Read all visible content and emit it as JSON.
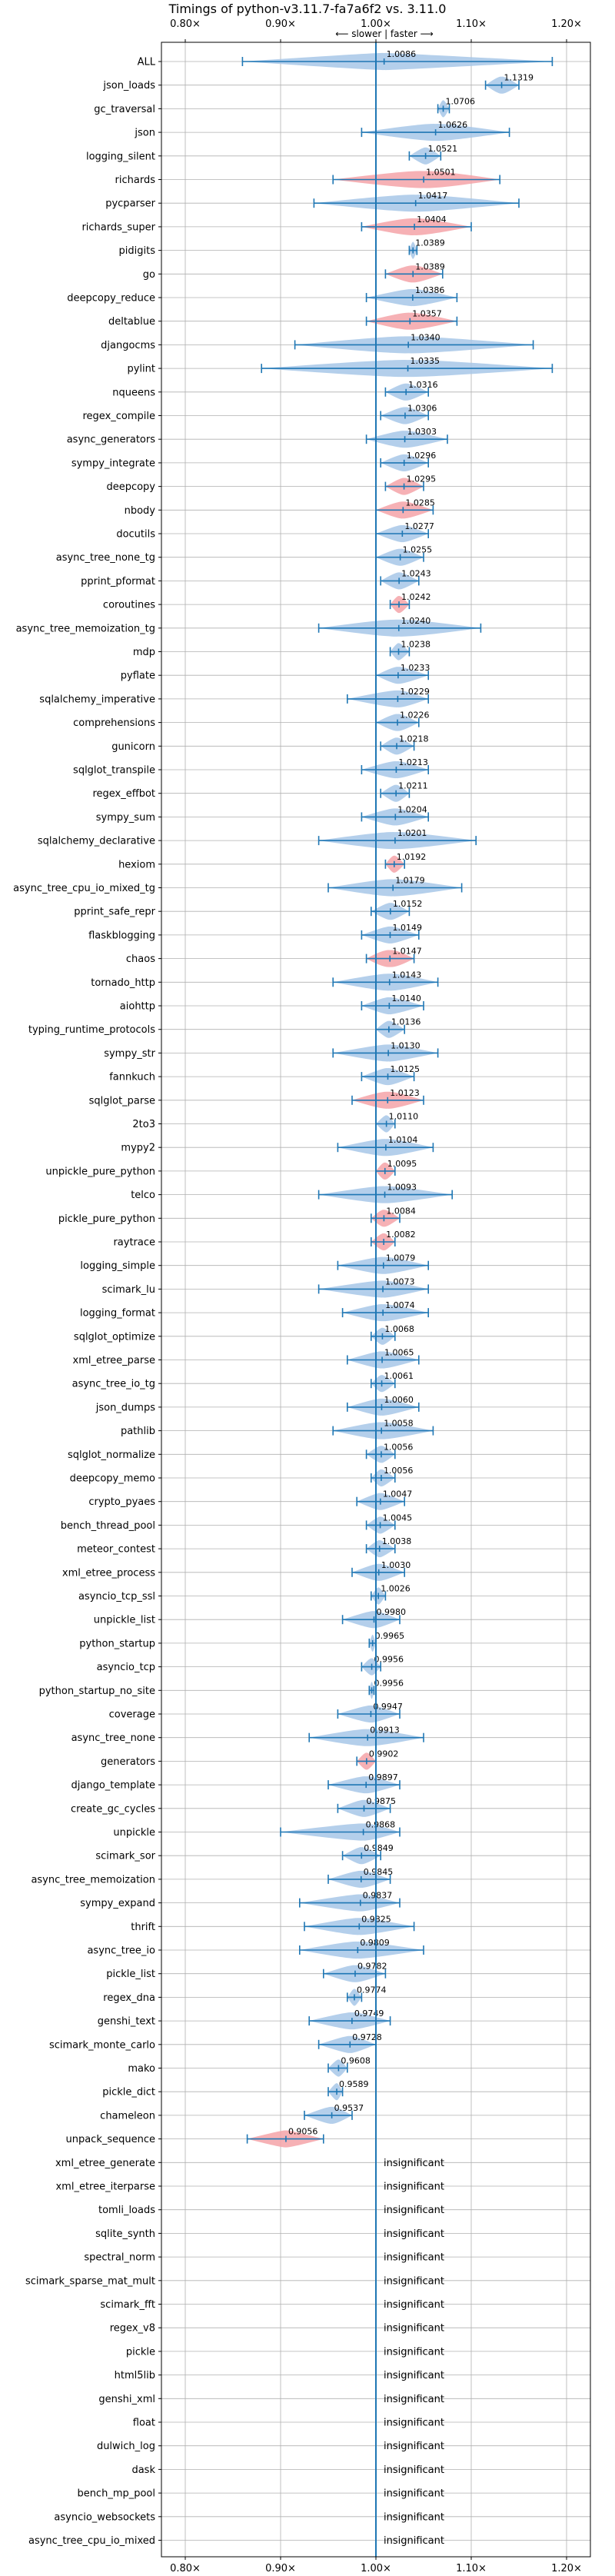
{
  "chart_data": {
    "type": "violin",
    "title": "Timings of python-v3.11.7-fa7a6f2 vs. 3.11.0",
    "direction_label": "⟵ slower | faster ⟶",
    "xlim": [
      0.775,
      1.225
    ],
    "xticks": [
      0.8,
      0.9,
      1.0,
      1.1,
      1.2
    ],
    "xtick_labels": [
      "0.80×",
      "0.90×",
      "1.00×",
      "1.10×",
      "1.20×"
    ],
    "reference_line": 1.0,
    "grid": true,
    "colors": {
      "faster": "#a7c7e7",
      "slower": "#f4a3a8",
      "errorbar": "#1f77b4",
      "reference": "#1f77b4",
      "grid": "#b0b0b0"
    },
    "insignificant_label": "insignificant",
    "benchmarks": [
      {
        "name": "ALL",
        "value": 1.0086,
        "min": 0.86,
        "max": 1.185,
        "width": 0.01,
        "slower": false
      },
      {
        "name": "json_loads",
        "value": 1.1319,
        "min": 1.115,
        "max": 1.15,
        "width": 0.018,
        "slower": false
      },
      {
        "name": "gc_traversal",
        "value": 1.0706,
        "min": 1.065,
        "max": 1.077,
        "width": 0.006,
        "slower": false
      },
      {
        "name": "json",
        "value": 1.0626,
        "min": 0.985,
        "max": 1.14,
        "width": 0.06,
        "slower": false
      },
      {
        "name": "logging_silent",
        "value": 1.0521,
        "min": 1.035,
        "max": 1.068,
        "width": 0.012,
        "slower": false
      },
      {
        "name": "richards",
        "value": 1.0501,
        "min": 0.955,
        "max": 1.13,
        "width": 0.08,
        "slower": true
      },
      {
        "name": "pycparser",
        "value": 1.0417,
        "min": 0.935,
        "max": 1.15,
        "width": 0.07,
        "slower": false
      },
      {
        "name": "richards_super",
        "value": 1.0404,
        "min": 0.985,
        "max": 1.1,
        "width": 0.05,
        "slower": true
      },
      {
        "name": "pidigits",
        "value": 1.0389,
        "min": 1.035,
        "max": 1.043,
        "width": 0.004,
        "slower": false
      },
      {
        "name": "go",
        "value": 1.0389,
        "min": 1.01,
        "max": 1.07,
        "width": 0.03,
        "slower": true
      },
      {
        "name": "deepcopy_reduce",
        "value": 1.0386,
        "min": 0.99,
        "max": 1.085,
        "width": 0.03,
        "slower": false
      },
      {
        "name": "deltablue",
        "value": 1.0357,
        "min": 0.99,
        "max": 1.085,
        "width": 0.04,
        "slower": true
      },
      {
        "name": "djangocms",
        "value": 1.034,
        "min": 0.915,
        "max": 1.165,
        "width": 0.09,
        "slower": false
      },
      {
        "name": "pylint",
        "value": 1.0335,
        "min": 0.88,
        "max": 1.185,
        "width": 0.1,
        "slower": false
      },
      {
        "name": "nqueens",
        "value": 1.0316,
        "min": 1.01,
        "max": 1.055,
        "width": 0.02,
        "slower": false
      },
      {
        "name": "regex_compile",
        "value": 1.0306,
        "min": 1.005,
        "max": 1.055,
        "width": 0.02,
        "slower": false
      },
      {
        "name": "async_generators",
        "value": 1.0303,
        "min": 0.99,
        "max": 1.075,
        "width": 0.03,
        "slower": false
      },
      {
        "name": "sympy_integrate",
        "value": 1.0296,
        "min": 1.005,
        "max": 1.055,
        "width": 0.02,
        "slower": false
      },
      {
        "name": "deepcopy",
        "value": 1.0295,
        "min": 1.01,
        "max": 1.05,
        "width": 0.015,
        "slower": true
      },
      {
        "name": "nbody",
        "value": 1.0285,
        "min": 1.0,
        "max": 1.06,
        "width": 0.025,
        "slower": true
      },
      {
        "name": "docutils",
        "value": 1.0277,
        "min": 1.0,
        "max": 1.055,
        "width": 0.02,
        "slower": false
      },
      {
        "name": "async_tree_none_tg",
        "value": 1.0255,
        "min": 1.0,
        "max": 1.05,
        "width": 0.02,
        "slower": false
      },
      {
        "name": "pprint_pformat",
        "value": 1.0243,
        "min": 1.005,
        "max": 1.045,
        "width": 0.015,
        "slower": false
      },
      {
        "name": "coroutines",
        "value": 1.0242,
        "min": 1.015,
        "max": 1.035,
        "width": 0.01,
        "slower": true
      },
      {
        "name": "async_tree_memoization_tg",
        "value": 1.024,
        "min": 0.94,
        "max": 1.11,
        "width": 0.07,
        "slower": false
      },
      {
        "name": "mdp",
        "value": 1.0238,
        "min": 1.015,
        "max": 1.035,
        "width": 0.008,
        "slower": false
      },
      {
        "name": "pyflate",
        "value": 1.0233,
        "min": 1.0,
        "max": 1.055,
        "width": 0.02,
        "slower": false
      },
      {
        "name": "sqlalchemy_imperative",
        "value": 1.0229,
        "min": 0.97,
        "max": 1.055,
        "width": 0.03,
        "slower": false
      },
      {
        "name": "comprehensions",
        "value": 1.0226,
        "min": 1.0,
        "max": 1.045,
        "width": 0.02,
        "slower": false
      },
      {
        "name": "gunicorn",
        "value": 1.0218,
        "min": 1.005,
        "max": 1.04,
        "width": 0.015,
        "slower": false
      },
      {
        "name": "sqlglot_transpile",
        "value": 1.0213,
        "min": 0.985,
        "max": 1.055,
        "width": 0.025,
        "slower": false
      },
      {
        "name": "regex_effbot",
        "value": 1.0211,
        "min": 1.005,
        "max": 1.035,
        "width": 0.012,
        "slower": false
      },
      {
        "name": "sympy_sum",
        "value": 1.0204,
        "min": 0.985,
        "max": 1.055,
        "width": 0.025,
        "slower": false
      },
      {
        "name": "sqlalchemy_declarative",
        "value": 1.0201,
        "min": 0.94,
        "max": 1.105,
        "width": 0.06,
        "slower": false
      },
      {
        "name": "hexiom",
        "value": 1.0192,
        "min": 1.01,
        "max": 1.03,
        "width": 0.01,
        "slower": true
      },
      {
        "name": "async_tree_cpu_io_mixed_tg",
        "value": 1.0179,
        "min": 0.95,
        "max": 1.09,
        "width": 0.05,
        "slower": false
      },
      {
        "name": "pprint_safe_repr",
        "value": 1.0152,
        "min": 0.995,
        "max": 1.035,
        "width": 0.015,
        "slower": false
      },
      {
        "name": "flaskblogging",
        "value": 1.0149,
        "min": 0.985,
        "max": 1.045,
        "width": 0.02,
        "slower": false
      },
      {
        "name": "chaos",
        "value": 1.0147,
        "min": 0.99,
        "max": 1.04,
        "width": 0.035,
        "slower": true
      },
      {
        "name": "tornado_http",
        "value": 1.0143,
        "min": 0.955,
        "max": 1.065,
        "width": 0.04,
        "slower": false
      },
      {
        "name": "aiohttp",
        "value": 1.014,
        "min": 0.985,
        "max": 1.05,
        "width": 0.02,
        "slower": false
      },
      {
        "name": "typing_runtime_protocols",
        "value": 1.0136,
        "min": 1.0,
        "max": 1.03,
        "width": 0.012,
        "slower": false
      },
      {
        "name": "sympy_str",
        "value": 1.013,
        "min": 0.955,
        "max": 1.065,
        "width": 0.03,
        "slower": false
      },
      {
        "name": "fannkuch",
        "value": 1.0125,
        "min": 0.985,
        "max": 1.04,
        "width": 0.02,
        "slower": false
      },
      {
        "name": "sqlglot_parse",
        "value": 1.0123,
        "min": 0.975,
        "max": 1.05,
        "width": 0.035,
        "slower": true
      },
      {
        "name": "2to3",
        "value": 1.011,
        "min": 1.0,
        "max": 1.02,
        "width": 0.008,
        "slower": false
      },
      {
        "name": "mypy2",
        "value": 1.0104,
        "min": 0.96,
        "max": 1.06,
        "width": 0.035,
        "slower": false
      },
      {
        "name": "unpickle_pure_python",
        "value": 1.0095,
        "min": 1.0,
        "max": 1.02,
        "width": 0.012,
        "slower": true
      },
      {
        "name": "telco",
        "value": 1.0093,
        "min": 0.94,
        "max": 1.08,
        "width": 0.04,
        "slower": false
      },
      {
        "name": "pickle_pure_python",
        "value": 1.0084,
        "min": 0.995,
        "max": 1.025,
        "width": 0.015,
        "slower": true
      },
      {
        "name": "raytrace",
        "value": 1.0082,
        "min": 0.995,
        "max": 1.02,
        "width": 0.012,
        "slower": true
      },
      {
        "name": "logging_simple",
        "value": 1.0079,
        "min": 0.96,
        "max": 1.055,
        "width": 0.03,
        "slower": false
      },
      {
        "name": "scimark_lu",
        "value": 1.0073,
        "min": 0.94,
        "max": 1.055,
        "width": 0.03,
        "slower": false
      },
      {
        "name": "logging_format",
        "value": 1.0074,
        "min": 0.965,
        "max": 1.055,
        "width": 0.03,
        "slower": false
      },
      {
        "name": "sqlglot_optimize",
        "value": 1.0068,
        "min": 0.995,
        "max": 1.02,
        "width": 0.01,
        "slower": false
      },
      {
        "name": "xml_etree_parse",
        "value": 1.0065,
        "min": 0.97,
        "max": 1.045,
        "width": 0.025,
        "slower": false
      },
      {
        "name": "async_tree_io_tg",
        "value": 1.0061,
        "min": 0.995,
        "max": 1.02,
        "width": 0.01,
        "slower": false
      },
      {
        "name": "json_dumps",
        "value": 1.006,
        "min": 0.97,
        "max": 1.045,
        "width": 0.025,
        "slower": false
      },
      {
        "name": "pathlib",
        "value": 1.0058,
        "min": 0.955,
        "max": 1.06,
        "width": 0.035,
        "slower": false
      },
      {
        "name": "sqlglot_normalize",
        "value": 1.0056,
        "min": 0.99,
        "max": 1.02,
        "width": 0.012,
        "slower": false
      },
      {
        "name": "deepcopy_memo",
        "value": 1.0056,
        "min": 0.995,
        "max": 1.02,
        "width": 0.01,
        "slower": false
      },
      {
        "name": "crypto_pyaes",
        "value": 1.0047,
        "min": 0.98,
        "max": 1.03,
        "width": 0.015,
        "slower": false
      },
      {
        "name": "bench_thread_pool",
        "value": 1.0045,
        "min": 0.99,
        "max": 1.02,
        "width": 0.01,
        "slower": false
      },
      {
        "name": "meteor_contest",
        "value": 1.0038,
        "min": 0.99,
        "max": 1.02,
        "width": 0.01,
        "slower": false
      },
      {
        "name": "xml_etree_process",
        "value": 1.003,
        "min": 0.975,
        "max": 1.03,
        "width": 0.02,
        "slower": false
      },
      {
        "name": "asyncio_tcp_ssl",
        "value": 1.0026,
        "min": 0.995,
        "max": 1.01,
        "width": 0.006,
        "slower": false
      },
      {
        "name": "unpickle_list",
        "value": 0.998,
        "min": 0.965,
        "max": 1.025,
        "width": 0.02,
        "slower": false
      },
      {
        "name": "python_startup",
        "value": 0.9965,
        "min": 0.993,
        "max": 1.0,
        "width": 0.003,
        "slower": false
      },
      {
        "name": "asyncio_tcp",
        "value": 0.9956,
        "min": 0.985,
        "max": 1.005,
        "width": 0.01,
        "slower": false
      },
      {
        "name": "python_startup_no_site",
        "value": 0.9956,
        "min": 0.993,
        "max": 0.998,
        "width": 0.003,
        "slower": false
      },
      {
        "name": "coverage",
        "value": 0.9947,
        "min": 0.96,
        "max": 1.025,
        "width": 0.02,
        "slower": false
      },
      {
        "name": "async_tree_none",
        "value": 0.9913,
        "min": 0.93,
        "max": 1.05,
        "width": 0.04,
        "slower": false
      },
      {
        "name": "generators",
        "value": 0.9902,
        "min": 0.98,
        "max": 1.0,
        "width": 0.01,
        "slower": true
      },
      {
        "name": "django_template",
        "value": 0.9897,
        "min": 0.95,
        "max": 1.025,
        "width": 0.025,
        "slower": false
      },
      {
        "name": "create_gc_cycles",
        "value": 0.9875,
        "min": 0.96,
        "max": 1.015,
        "width": 0.02,
        "slower": false
      },
      {
        "name": "unpickle",
        "value": 0.9868,
        "min": 0.9,
        "max": 1.025,
        "width": 0.04,
        "slower": false
      },
      {
        "name": "scimark_sor",
        "value": 0.9849,
        "min": 0.965,
        "max": 1.005,
        "width": 0.015,
        "slower": false
      },
      {
        "name": "async_tree_memoization",
        "value": 0.9845,
        "min": 0.95,
        "max": 1.015,
        "width": 0.025,
        "slower": false
      },
      {
        "name": "sympy_expand",
        "value": 0.9837,
        "min": 0.92,
        "max": 1.025,
        "width": 0.025,
        "slower": false
      },
      {
        "name": "thrift",
        "value": 0.9825,
        "min": 0.925,
        "max": 1.04,
        "width": 0.035,
        "slower": false
      },
      {
        "name": "async_tree_io",
        "value": 0.9809,
        "min": 0.92,
        "max": 1.05,
        "width": 0.04,
        "slower": false
      },
      {
        "name": "pickle_list",
        "value": 0.9782,
        "min": 0.945,
        "max": 1.01,
        "width": 0.025,
        "slower": false
      },
      {
        "name": "regex_dna",
        "value": 0.9774,
        "min": 0.97,
        "max": 0.985,
        "width": 0.006,
        "slower": false
      },
      {
        "name": "genshi_text",
        "value": 0.9749,
        "min": 0.93,
        "max": 1.015,
        "width": 0.025,
        "slower": false
      },
      {
        "name": "scimark_monte_carlo",
        "value": 0.9728,
        "min": 0.94,
        "max": 1.0,
        "width": 0.02,
        "slower": false
      },
      {
        "name": "mako",
        "value": 0.9608,
        "min": 0.95,
        "max": 0.97,
        "width": 0.008,
        "slower": false
      },
      {
        "name": "pickle_dict",
        "value": 0.9589,
        "min": 0.95,
        "max": 0.965,
        "width": 0.006,
        "slower": false
      },
      {
        "name": "chameleon",
        "value": 0.9537,
        "min": 0.925,
        "max": 0.975,
        "width": 0.02,
        "slower": false
      },
      {
        "name": "unpack_sequence",
        "value": 0.9056,
        "min": 0.865,
        "max": 0.945,
        "width": 0.012,
        "slower": true
      },
      {
        "name": "xml_etree_generate",
        "insignificant": true
      },
      {
        "name": "xml_etree_iterparse",
        "insignificant": true
      },
      {
        "name": "tomli_loads",
        "insignificant": true
      },
      {
        "name": "sqlite_synth",
        "insignificant": true
      },
      {
        "name": "spectral_norm",
        "insignificant": true
      },
      {
        "name": "scimark_sparse_mat_mult",
        "insignificant": true
      },
      {
        "name": "scimark_fft",
        "insignificant": true
      },
      {
        "name": "regex_v8",
        "insignificant": true
      },
      {
        "name": "pickle",
        "insignificant": true
      },
      {
        "name": "html5lib",
        "insignificant": true
      },
      {
        "name": "genshi_xml",
        "insignificant": true
      },
      {
        "name": "float",
        "insignificant": true
      },
      {
        "name": "dulwich_log",
        "insignificant": true
      },
      {
        "name": "dask",
        "insignificant": true
      },
      {
        "name": "bench_mp_pool",
        "insignificant": true
      },
      {
        "name": "asyncio_websockets",
        "insignificant": true
      },
      {
        "name": "async_tree_cpu_io_mixed",
        "insignificant": true
      }
    ]
  }
}
